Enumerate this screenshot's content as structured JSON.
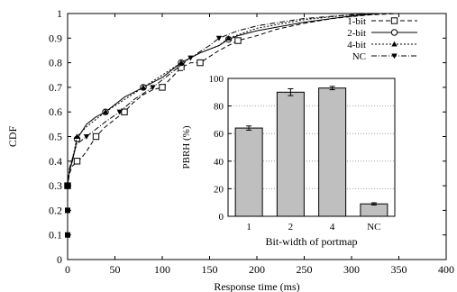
{
  "chart_data": [
    {
      "type": "line",
      "title": "",
      "xlabel": "Response time (ms)",
      "ylabel": "CDF",
      "xlim": [
        0,
        400
      ],
      "ylim": [
        0,
        1
      ],
      "xticks": [
        0,
        50,
        100,
        150,
        200,
        250,
        300,
        350,
        400
      ],
      "yticks": [
        0,
        0.1,
        0.2,
        0.3,
        0.4,
        0.5,
        0.6,
        0.7,
        0.8,
        0.9,
        1
      ],
      "grid": false,
      "legend_position": "top-right",
      "series": [
        {
          "name": "1-bit",
          "marker": "square",
          "dash": "5,3",
          "points": [
            [
              0,
              0
            ],
            [
              0,
              0.1
            ],
            [
              0,
              0.2
            ],
            [
              0,
              0.3
            ],
            [
              2,
              0.35
            ],
            [
              5,
              0.38
            ],
            [
              8,
              0.39
            ],
            [
              10,
              0.4
            ],
            [
              14,
              0.41
            ],
            [
              20,
              0.44
            ],
            [
              30,
              0.5
            ],
            [
              40,
              0.54
            ],
            [
              50,
              0.57
            ],
            [
              60,
              0.6
            ],
            [
              70,
              0.64
            ],
            [
              80,
              0.67
            ],
            [
              90,
              0.69
            ],
            [
              100,
              0.7
            ],
            [
              110,
              0.74
            ],
            [
              120,
              0.78
            ],
            [
              130,
              0.8
            ],
            [
              140,
              0.8
            ],
            [
              160,
              0.85
            ],
            [
              180,
              0.89
            ],
            [
              200,
              0.91
            ],
            [
              220,
              0.935
            ],
            [
              250,
              0.96
            ],
            [
              280,
              0.98
            ],
            [
              320,
              0.995
            ],
            [
              350,
              1
            ]
          ],
          "marker_x": [
            0,
            10,
            30,
            60,
            100,
            120,
            140,
            180
          ]
        },
        {
          "name": "2-bit",
          "marker": "circle",
          "dash": "",
          "points": [
            [
              0,
              0
            ],
            [
              0,
              0.1
            ],
            [
              0,
              0.2
            ],
            [
              0,
              0.3
            ],
            [
              2,
              0.36
            ],
            [
              5,
              0.4
            ],
            [
              8,
              0.45
            ],
            [
              10,
              0.49
            ],
            [
              20,
              0.55
            ],
            [
              30,
              0.58
            ],
            [
              40,
              0.6
            ],
            [
              60,
              0.66
            ],
            [
              80,
              0.7
            ],
            [
              100,
              0.74
            ],
            [
              120,
              0.8
            ],
            [
              140,
              0.84
            ],
            [
              160,
              0.87
            ],
            [
              170,
              0.895
            ],
            [
              180,
              0.91
            ],
            [
              200,
              0.93
            ],
            [
              250,
              0.965
            ],
            [
              300,
              0.99
            ],
            [
              330,
              1
            ]
          ],
          "marker_x": [
            0,
            10,
            40,
            80,
            120,
            170
          ]
        },
        {
          "name": "4-bit",
          "marker": "triangle-up",
          "dash": "2,2",
          "points": [
            [
              0,
              0
            ],
            [
              0,
              0.1
            ],
            [
              0,
              0.2
            ],
            [
              0,
              0.3
            ],
            [
              2,
              0.37
            ],
            [
              5,
              0.41
            ],
            [
              8,
              0.46
            ],
            [
              10,
              0.5
            ],
            [
              20,
              0.54
            ],
            [
              40,
              0.6
            ],
            [
              60,
              0.65
            ],
            [
              80,
              0.7
            ],
            [
              100,
              0.75
            ],
            [
              120,
              0.8
            ],
            [
              140,
              0.84
            ],
            [
              160,
              0.87
            ],
            [
              170,
              0.9
            ],
            [
              200,
              0.94
            ],
            [
              250,
              0.975
            ],
            [
              300,
              0.995
            ],
            [
              330,
              1
            ]
          ],
          "marker_x": [
            0,
            10,
            40,
            80,
            120,
            170
          ]
        },
        {
          "name": "NC",
          "marker": "triangle-down",
          "dash": "6,2,1,2",
          "points": [
            [
              0,
              0
            ],
            [
              0,
              0.1
            ],
            [
              0,
              0.2
            ],
            [
              0,
              0.3
            ],
            [
              2,
              0.37
            ],
            [
              5,
              0.41
            ],
            [
              8,
              0.45
            ],
            [
              10,
              0.47
            ],
            [
              20,
              0.5
            ],
            [
              40,
              0.56
            ],
            [
              55,
              0.6
            ],
            [
              70,
              0.65
            ],
            [
              90,
              0.7
            ],
            [
              110,
              0.76
            ],
            [
              130,
              0.82
            ],
            [
              150,
              0.87
            ],
            [
              160,
              0.9
            ],
            [
              180,
              0.93
            ],
            [
              200,
              0.95
            ],
            [
              250,
              0.98
            ],
            [
              300,
              0.995
            ],
            [
              320,
              1
            ]
          ],
          "marker_x": [
            0,
            20,
            55,
            90,
            130,
            160
          ]
        }
      ]
    },
    {
      "type": "bar",
      "title": "",
      "xlabel": "Bit-width of portmap",
      "ylabel": "PBRH (%)",
      "categories": [
        "1",
        "2",
        "4",
        "NC"
      ],
      "values": [
        64,
        90,
        93,
        9
      ],
      "errors": [
        1.5,
        2.5,
        1.2,
        0.8
      ],
      "ylim": [
        0,
        100
      ],
      "yticks": [
        0,
        20,
        40,
        60,
        80,
        100
      ],
      "grid": "horizontal dotted",
      "position": "inset lower-right"
    }
  ]
}
